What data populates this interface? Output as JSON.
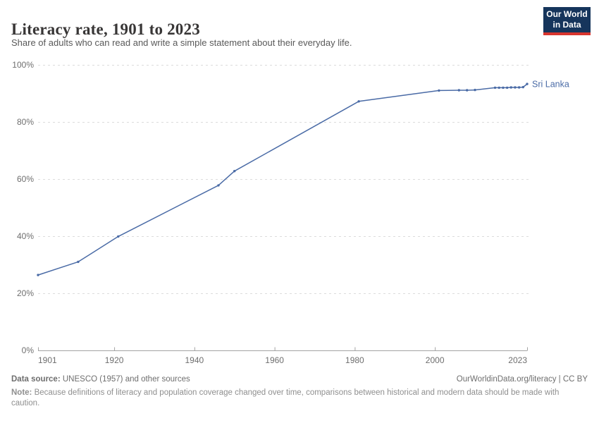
{
  "header": {
    "title": "Literacy rate, 1901 to 2023",
    "subtitle": "Share of adults who can read and write a simple statement about their everyday life.",
    "logo": {
      "line1": "Our World",
      "line2": "in Data",
      "bg_color": "#16355c",
      "accent_color": "#d8352e"
    }
  },
  "chart_data": {
    "type": "line",
    "title": "Literacy rate, 1901 to 2023",
    "subtitle": "Share of adults who can read and write a simple statement about their everyday life.",
    "entity_label": "Sri Lanka",
    "xlim": [
      1901,
      2023
    ],
    "ylim": [
      0,
      100
    ],
    "x_ticks": [
      1901,
      1920,
      1940,
      1960,
      1980,
      2000,
      2023
    ],
    "y_ticks": [
      0,
      20,
      40,
      60,
      80,
      100
    ],
    "y_tick_suffix": "%",
    "grid": "dashed-horizontal",
    "legend_position": "end-of-line",
    "colors": {
      "line": "#4a6ba6",
      "grid": "#dcdcdc",
      "axis": "#a3a3a3",
      "tick_label": "#6e6e6e"
    },
    "series": [
      {
        "name": "Sri Lanka",
        "points": [
          [
            1901,
            26.4
          ],
          [
            1911,
            31.0
          ],
          [
            1921,
            39.9
          ],
          [
            1946,
            57.8
          ],
          [
            1950,
            62.8
          ],
          [
            1981,
            87.2
          ],
          [
            2001,
            91.0
          ],
          [
            2006,
            91.1
          ],
          [
            2008,
            91.1
          ],
          [
            2010,
            91.2
          ],
          [
            2015,
            92.0
          ],
          [
            2016,
            92.0
          ],
          [
            2017,
            92.0
          ],
          [
            2018,
            92.0
          ],
          [
            2019,
            92.1
          ],
          [
            2020,
            92.1
          ],
          [
            2021,
            92.1
          ],
          [
            2022,
            92.2
          ],
          [
            2023,
            93.3
          ]
        ]
      }
    ]
  },
  "footer": {
    "data_source_label": "Data source:",
    "data_source_value": " UNESCO (1957) and other sources",
    "link": "OurWorldinData.org/literacy | CC BY",
    "note_label": "Note:",
    "note_value": " Because definitions of literacy and population coverage changed over time, comparisons between historical and modern data should be made with caution."
  }
}
